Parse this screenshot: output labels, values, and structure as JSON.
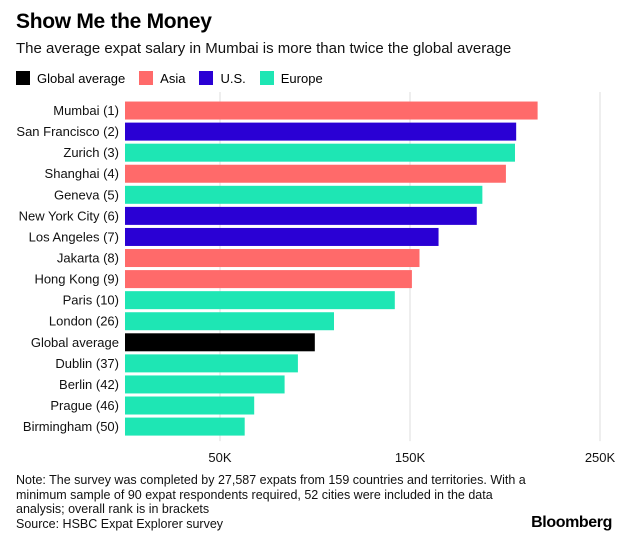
{
  "title": "Show Me the Money",
  "subtitle": "The average expat salary in Mumbai is more than twice the global average",
  "legend": [
    {
      "label": "Global average",
      "color": "#000000"
    },
    {
      "label": "Asia",
      "color": "#ff6a6a"
    },
    {
      "label": "U.S.",
      "color": "#2a00d4"
    },
    {
      "label": "Europe",
      "color": "#1ee6b4"
    }
  ],
  "note": "Note: The survey was completed by 27,587 expats from 159 countries and territories. With a minimum sample of 90 expat respondents required, 52 cities were included in the data analysis; overall rank is in brackets",
  "source": "Source: HSBC Expat Explorer survey",
  "brand": "Bloomberg",
  "chart_data": {
    "type": "bar",
    "orientation": "horizontal",
    "xlim": [
      0,
      250000
    ],
    "grid": true,
    "colors": {
      "Global average": "#000000",
      "Asia": "#ff6a6a",
      "U.S.": "#2a00d4",
      "Europe": "#1ee6b4"
    },
    "tick_labels": [
      {
        "value": 50000,
        "label": "50K"
      },
      {
        "value": 150000,
        "label": "150K"
      },
      {
        "value": 250000,
        "label": "250K"
      }
    ],
    "bars": [
      {
        "label": "Mumbai (1)",
        "value": 217165,
        "group": "Asia"
      },
      {
        "label": "San Francisco (2)",
        "value": 205882,
        "group": "U.S."
      },
      {
        "label": "Zurich (3)",
        "value": 205257,
        "group": "Europe"
      },
      {
        "label": "Shanghai (4)",
        "value": 200481,
        "group": "Asia"
      },
      {
        "label": "Geneva (5)",
        "value": 188088,
        "group": "Europe"
      },
      {
        "label": "New York City (6)",
        "value": 185143,
        "group": "U.S."
      },
      {
        "label": "Los Angeles (7)",
        "value": 165026,
        "group": "U.S."
      },
      {
        "label": "Jakarta (8)",
        "value": 155000,
        "group": "Asia"
      },
      {
        "label": "Hong Kong (9)",
        "value": 151000,
        "group": "Asia"
      },
      {
        "label": "Paris (10)",
        "value": 142000,
        "group": "Europe"
      },
      {
        "label": "London (26)",
        "value": 110000,
        "group": "Europe"
      },
      {
        "label": "Global average",
        "value": 99903,
        "group": "Global average"
      },
      {
        "label": "Dublin (37)",
        "value": 91000,
        "group": "Europe"
      },
      {
        "label": "Berlin (42)",
        "value": 84000,
        "group": "Europe"
      },
      {
        "label": "Prague (46)",
        "value": 68000,
        "group": "Europe"
      },
      {
        "label": "Birmingham (50)",
        "value": 63000,
        "group": "Europe"
      }
    ]
  }
}
